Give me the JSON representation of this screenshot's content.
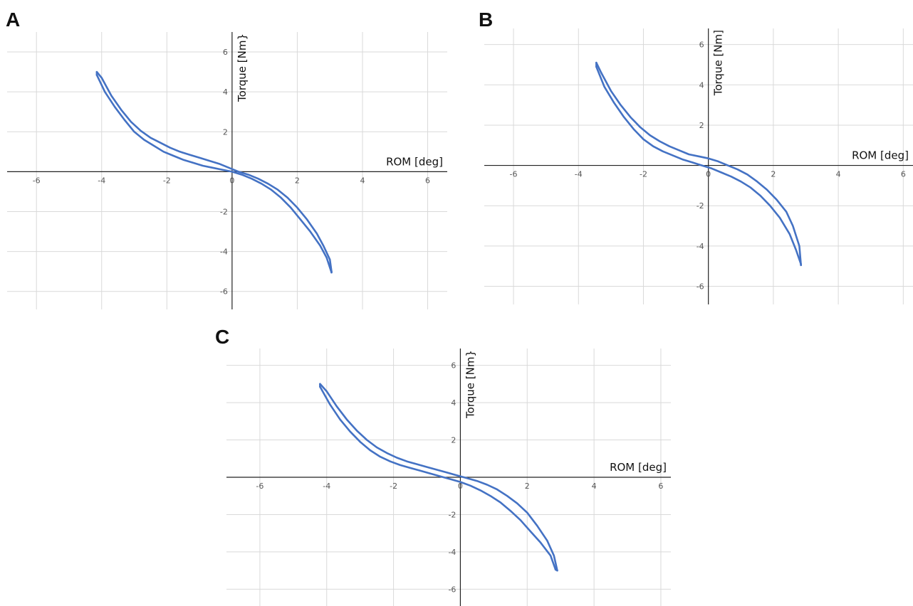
{
  "chart_data": [
    {
      "type": "line",
      "panel": "A",
      "xlabel": "ROM [deg]",
      "ylabel": "Torque [Nm}",
      "xlim": [
        -6.9,
        6.6
      ],
      "ylim": [
        -6.9,
        7.0
      ],
      "xticks": [
        -6,
        -4,
        -2,
        0,
        2,
        4,
        6
      ],
      "yticks": [
        -6,
        -4,
        -2,
        0,
        2,
        4,
        6
      ],
      "grid": true,
      "series": [
        {
          "x": [
            -4.15,
            -3.9,
            -3.6,
            -3.3,
            -3.0,
            -2.7,
            -2.4,
            -2.1,
            -1.8,
            -1.5,
            -1.2,
            -0.9,
            -0.6,
            -0.3,
            0.0,
            0.3,
            0.6,
            0.9,
            1.2,
            1.5,
            1.8,
            2.1,
            2.4,
            2.7,
            2.9,
            3.05
          ],
          "y": [
            4.85,
            4.0,
            3.25,
            2.6,
            2.0,
            1.6,
            1.3,
            1.0,
            0.8,
            0.6,
            0.45,
            0.3,
            0.2,
            0.1,
            0.0,
            -0.15,
            -0.35,
            -0.6,
            -0.9,
            -1.3,
            -1.8,
            -2.4,
            -3.0,
            -3.7,
            -4.3,
            -5.05
          ]
        },
        {
          "x": [
            -4.15,
            -4.0,
            -3.7,
            -3.4,
            -3.1,
            -2.8,
            -2.5,
            -2.2,
            -1.9,
            -1.6,
            -1.3,
            -1.0,
            -0.7,
            -0.4,
            -0.1,
            0.2,
            0.5,
            0.8,
            1.1,
            1.4,
            1.7,
            2.0,
            2.3,
            2.6,
            2.8,
            3.0,
            3.05
          ],
          "y": [
            5.0,
            4.7,
            3.8,
            3.1,
            2.5,
            2.05,
            1.7,
            1.45,
            1.2,
            1.0,
            0.85,
            0.7,
            0.55,
            0.4,
            0.2,
            0.0,
            -0.15,
            -0.35,
            -0.6,
            -0.9,
            -1.3,
            -1.8,
            -2.4,
            -3.1,
            -3.7,
            -4.4,
            -5.0
          ]
        }
      ]
    },
    {
      "type": "line",
      "panel": "B",
      "xlabel": "ROM [deg]",
      "ylabel": "Torque [Nm]",
      "xlim": [
        -6.9,
        6.3
      ],
      "ylim": [
        -6.9,
        6.8
      ],
      "xticks": [
        -6,
        -4,
        -2,
        0,
        2,
        4,
        6
      ],
      "yticks": [
        -6,
        -4,
        -2,
        0,
        2,
        4,
        6
      ],
      "grid": true,
      "series": [
        {
          "x": [
            -3.45,
            -3.2,
            -2.9,
            -2.6,
            -2.3,
            -2.0,
            -1.7,
            -1.4,
            -1.1,
            -0.8,
            -0.5,
            -0.2,
            0.1,
            0.4,
            0.7,
            1.0,
            1.3,
            1.6,
            1.9,
            2.2,
            2.5,
            2.7,
            2.85
          ],
          "y": [
            4.9,
            3.9,
            3.1,
            2.4,
            1.8,
            1.3,
            0.95,
            0.7,
            0.5,
            0.3,
            0.15,
            0.0,
            -0.15,
            -0.35,
            -0.55,
            -0.8,
            -1.1,
            -1.5,
            -2.0,
            -2.6,
            -3.4,
            -4.2,
            -4.9
          ]
        },
        {
          "x": [
            -3.45,
            -3.3,
            -3.0,
            -2.7,
            -2.4,
            -2.1,
            -1.8,
            -1.5,
            -1.2,
            -0.9,
            -0.6,
            -0.3,
            0.0,
            0.3,
            0.6,
            0.9,
            1.2,
            1.5,
            1.8,
            2.1,
            2.4,
            2.6,
            2.8,
            2.85
          ],
          "y": [
            5.1,
            4.6,
            3.7,
            3.0,
            2.4,
            1.9,
            1.5,
            1.2,
            0.95,
            0.75,
            0.55,
            0.45,
            0.35,
            0.2,
            0.0,
            -0.2,
            -0.45,
            -0.8,
            -1.2,
            -1.7,
            -2.3,
            -3.0,
            -4.0,
            -4.95
          ]
        }
      ]
    },
    {
      "type": "line",
      "panel": "C",
      "xlabel": "ROM [deg]",
      "ylabel": "Torque [Nm}",
      "xlim": [
        -7.0,
        6.3
      ],
      "ylim": [
        -6.9,
        6.9
      ],
      "xticks": [
        -6,
        -4,
        -2,
        0,
        2,
        4,
        6
      ],
      "yticks": [
        -6,
        -4,
        -2,
        0,
        2,
        4,
        6
      ],
      "grid": true,
      "series": [
        {
          "x": [
            -4.2,
            -3.9,
            -3.6,
            -3.3,
            -3.0,
            -2.7,
            -2.4,
            -2.1,
            -1.8,
            -1.5,
            -1.2,
            -0.9,
            -0.6,
            -0.3,
            0.0,
            0.3,
            0.6,
            0.9,
            1.2,
            1.5,
            1.8,
            2.1,
            2.4,
            2.7,
            2.85
          ],
          "y": [
            4.85,
            3.9,
            3.1,
            2.45,
            1.9,
            1.45,
            1.1,
            0.85,
            0.65,
            0.5,
            0.35,
            0.2,
            0.05,
            -0.1,
            -0.25,
            -0.45,
            -0.7,
            -1.0,
            -1.35,
            -1.8,
            -2.3,
            -2.9,
            -3.5,
            -4.2,
            -4.95
          ]
        },
        {
          "x": [
            -4.2,
            -4.0,
            -3.7,
            -3.4,
            -3.1,
            -2.8,
            -2.5,
            -2.2,
            -1.9,
            -1.6,
            -1.3,
            -1.0,
            -0.7,
            -0.4,
            -0.1,
            0.2,
            0.5,
            0.8,
            1.1,
            1.4,
            1.7,
            2.0,
            2.3,
            2.6,
            2.8,
            2.9
          ],
          "y": [
            5.0,
            4.6,
            3.8,
            3.1,
            2.5,
            2.0,
            1.6,
            1.3,
            1.05,
            0.85,
            0.7,
            0.55,
            0.4,
            0.25,
            0.1,
            -0.05,
            -0.2,
            -0.4,
            -0.65,
            -1.0,
            -1.4,
            -1.9,
            -2.6,
            -3.4,
            -4.2,
            -5.0
          ]
        }
      ]
    }
  ],
  "colors": {
    "series": "#4472c4",
    "grid": "#d9d9d9",
    "axis": "#222222"
  }
}
